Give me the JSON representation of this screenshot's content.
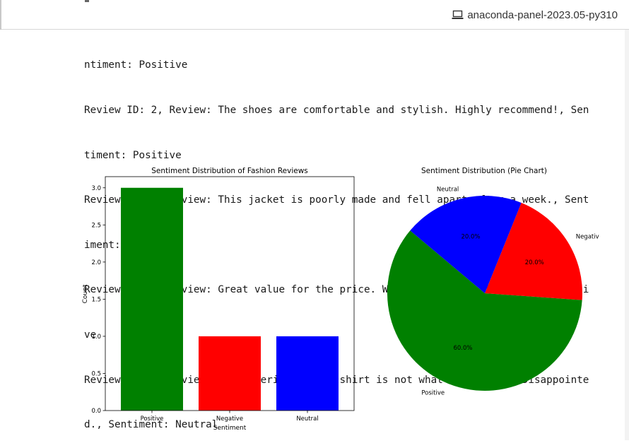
{
  "header": {
    "kernel_label": "anaconda-panel-2023.05-py310",
    "kernel_icon": "laptop-icon"
  },
  "output": {
    "lines": [
      "ntiment: Positive",
      "Review ID: 2, Review: The shoes are comfortable and stylish. Highly recommend!, Sen",
      "timent: Positive",
      "Review ID: 3, Review: This jacket is poorly made and fell apart after a week., Sent",
      "iment: Negative",
      "Review ID: 4, Review: Great value for the price. Will buy again., Sentiment: Positi",
      "ve",
      "Review ID: 5, Review: The material of the shirt is not what I expected. Disappointe",
      "d., Sentiment: Neutral"
    ]
  },
  "chart_data": [
    {
      "type": "bar",
      "title": "Sentiment Distribution of Fashion Reviews",
      "xlabel": "Sentiment",
      "ylabel": "Count",
      "categories": [
        "Positive",
        "Negative",
        "Neutral"
      ],
      "values": [
        3,
        1,
        1
      ],
      "colors": [
        "#008000",
        "#ff0000",
        "#0000ff"
      ],
      "ylim": [
        0,
        3.15
      ],
      "yticks": [
        "0.0",
        "0.5",
        "1.0",
        "1.5",
        "2.0",
        "2.5",
        "3.0"
      ],
      "grid": false
    },
    {
      "type": "pie",
      "title": "Sentiment Distribution (Pie Chart)",
      "labels": [
        "Positive",
        "Negative",
        "Neutral"
      ],
      "values": [
        60.0,
        20.0,
        20.0
      ],
      "pct_labels": [
        "60.0%",
        "20.0%",
        "20.0%"
      ],
      "colors": [
        "#008000",
        "#ff0000",
        "#0000ff"
      ]
    }
  ]
}
